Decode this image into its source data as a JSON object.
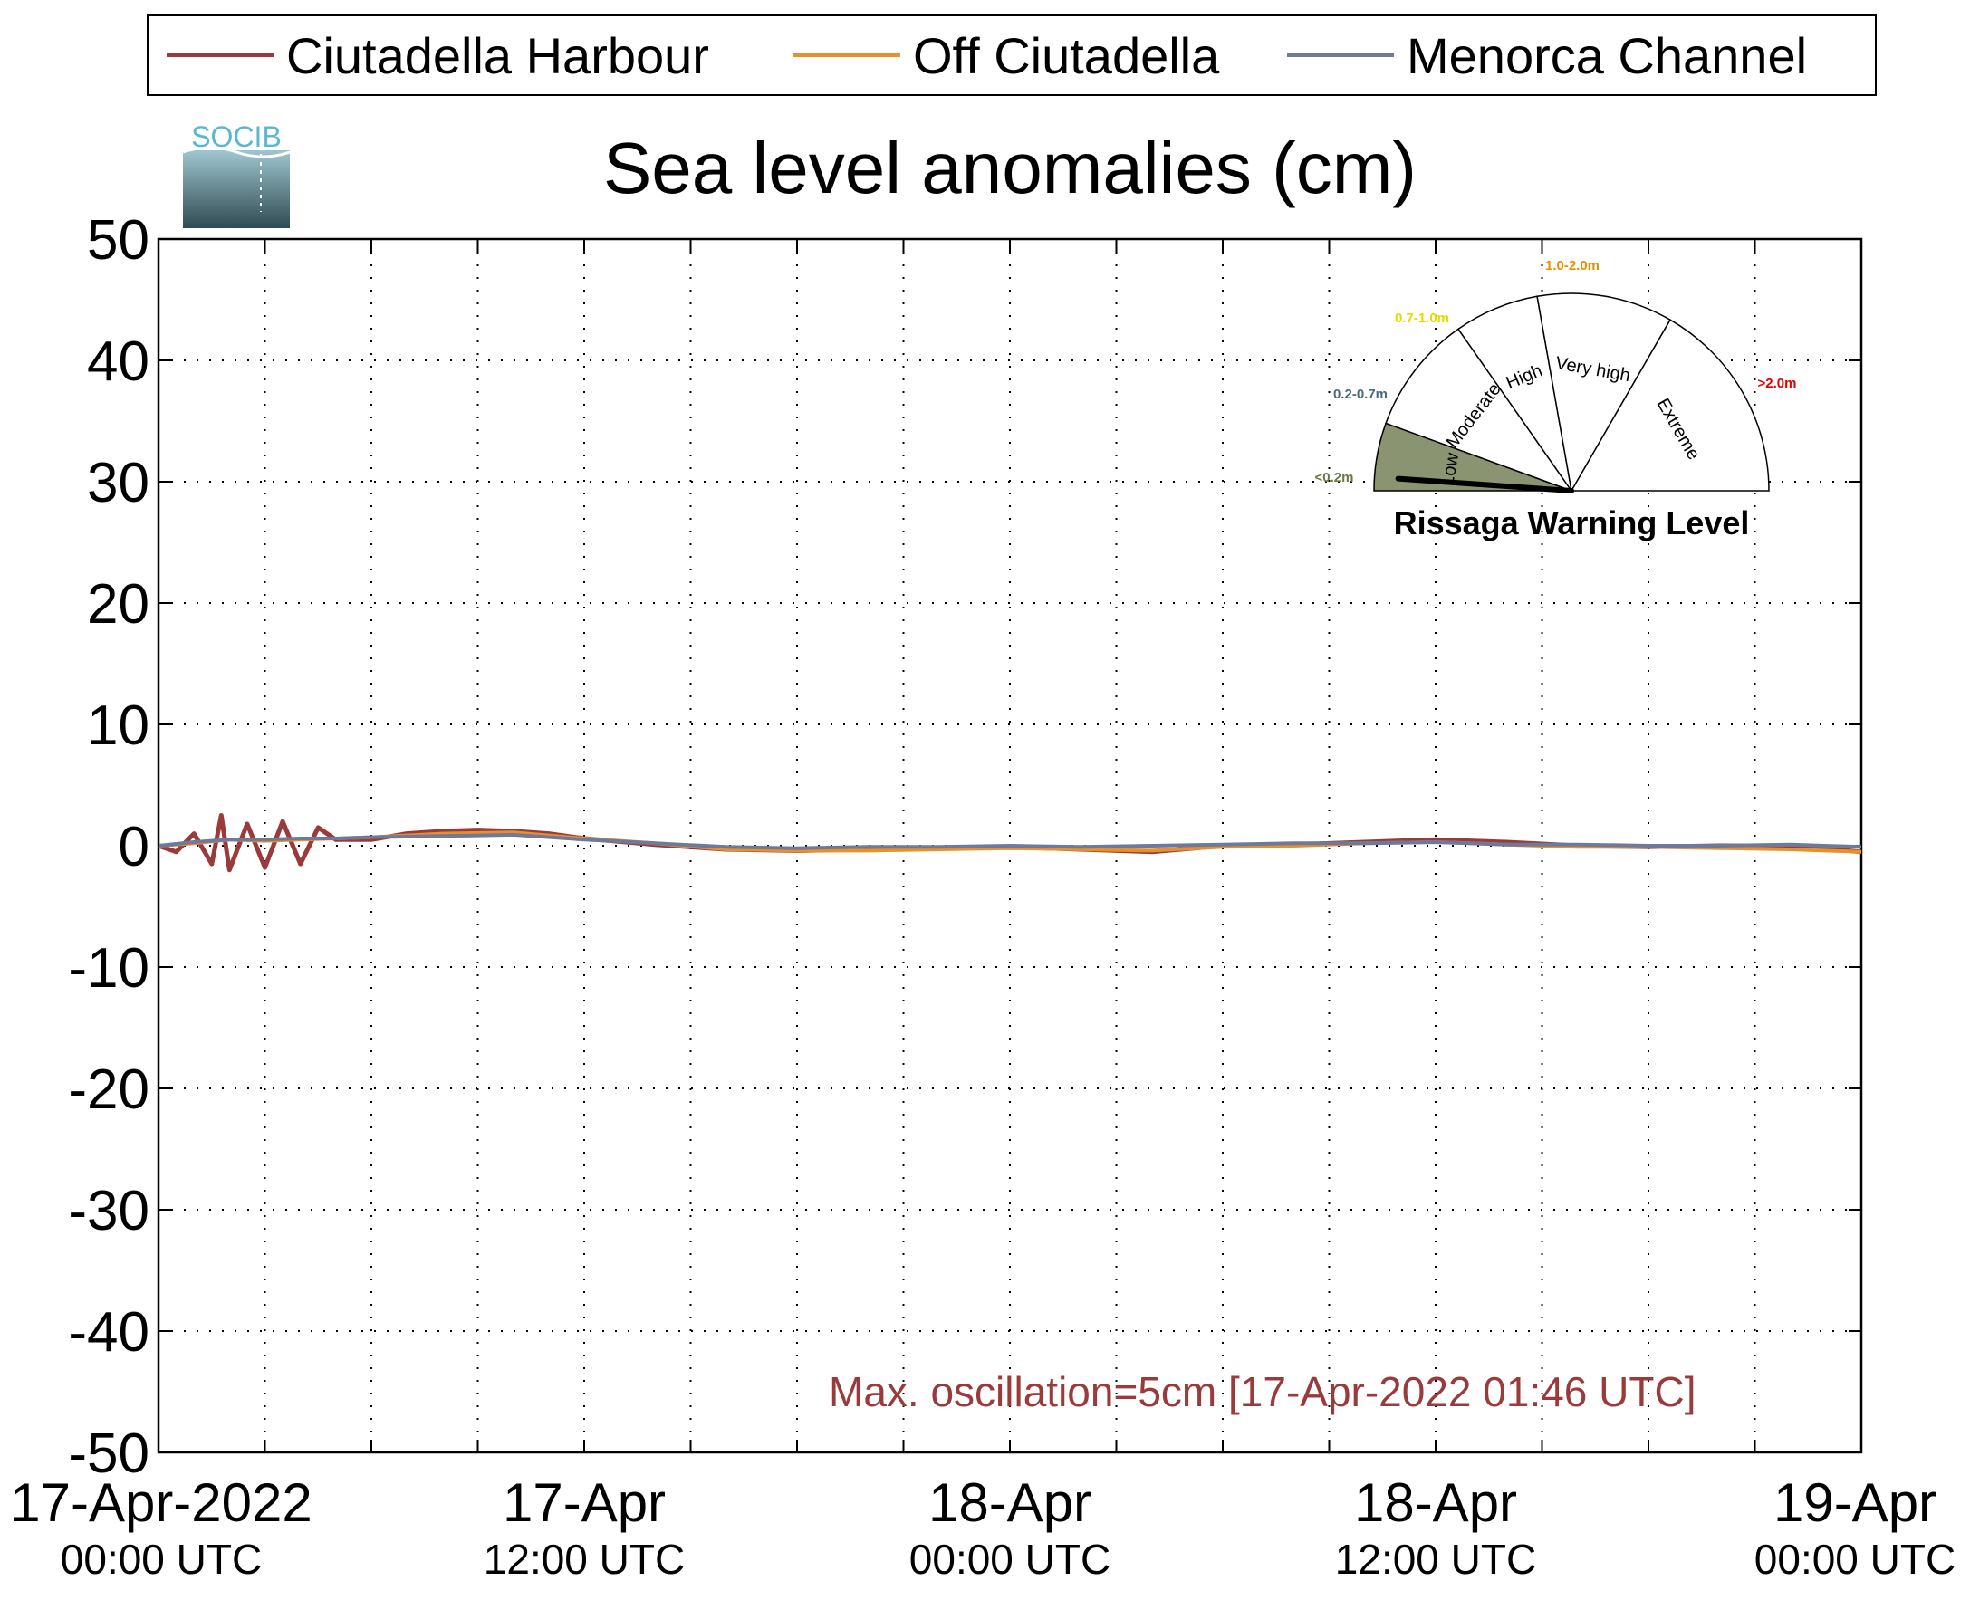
{
  "legend": {
    "items": [
      {
        "label": "Ciutadella Harbour",
        "color": "#9b3a3a"
      },
      {
        "label": "Off Ciutadella",
        "color": "#e8902a"
      },
      {
        "label": "Menorca Channel",
        "color": "#6f7a9a"
      }
    ]
  },
  "logo": {
    "text": "SOCIB"
  },
  "gauge": {
    "title": "Rissaga Warning Level",
    "needle_level": "Low",
    "sectors": [
      {
        "name": "Low",
        "range": "<0.2m",
        "range_color": "#6b7a45",
        "fill": "#8a9470"
      },
      {
        "name": "Moderate",
        "range": "0.2-0.7m",
        "range_color": "#4a6b7a",
        "fill": "#ffffff"
      },
      {
        "name": "High",
        "range": "0.7-1.0m",
        "range_color": "#e6d800",
        "fill": "#ffffff"
      },
      {
        "name": "Very high",
        "range": "1.0-2.0m",
        "range_color": "#f08a00",
        "fill": "#ffffff"
      },
      {
        "name": "Extreme",
        "range": ">2.0m",
        "range_color": "#e00000",
        "fill": "#ffffff"
      }
    ]
  },
  "annotation": {
    "text": "Max. oscillation=5cm [17-Apr-2022 01:46 UTC]",
    "color": "#9b3a3a"
  },
  "chart_data": {
    "type": "line",
    "title": "Sea level anomalies (cm)",
    "xlabel": "",
    "ylabel": "",
    "ylim": [
      -50,
      50
    ],
    "yticks": [
      50,
      40,
      30,
      20,
      10,
      0,
      -10,
      -20,
      -30,
      -40,
      -50
    ],
    "xlim_hours": [
      0,
      48
    ],
    "x_major_ticks": [
      {
        "hour": 0,
        "line1": "17-Apr-2022",
        "line2": "00:00 UTC"
      },
      {
        "hour": 12,
        "line1": "17-Apr",
        "line2": "12:00 UTC"
      },
      {
        "hour": 24,
        "line1": "18-Apr",
        "line2": "00:00 UTC"
      },
      {
        "hour": 36,
        "line1": "18-Apr",
        "line2": "12:00 UTC"
      },
      {
        "hour": 48,
        "line1": "19-Apr",
        "line2": "00:00 UTC"
      }
    ],
    "grid": true,
    "legend_position": "top",
    "series": [
      {
        "name": "Ciutadella Harbour",
        "color": "#9b3a3a",
        "x_hours": [
          0,
          0.5,
          1,
          1.5,
          1.77,
          2,
          2.5,
          3,
          3.5,
          4,
          4.5,
          5,
          6,
          7,
          8,
          9,
          10,
          11,
          12,
          14,
          16,
          18,
          20,
          22,
          24,
          26,
          28,
          30,
          32,
          34,
          36,
          38,
          40,
          42,
          44,
          46,
          48
        ],
        "y": [
          0,
          -0.5,
          1.0,
          -1.5,
          2.5,
          -2.0,
          1.8,
          -1.8,
          2.0,
          -1.5,
          1.5,
          0.5,
          0.5,
          1.0,
          1.2,
          1.3,
          1.2,
          1.0,
          0.6,
          0.1,
          -0.3,
          -0.4,
          -0.3,
          -0.2,
          -0.1,
          -0.3,
          -0.5,
          0.0,
          0.1,
          0.3,
          0.5,
          0.3,
          0.0,
          -0.1,
          0.0,
          0.0,
          -0.5
        ]
      },
      {
        "name": "Off Ciutadella",
        "color": "#e8902a",
        "x_hours": [
          0,
          1,
          2,
          3,
          4,
          5,
          6,
          8,
          10,
          12,
          14,
          16,
          18,
          20,
          22,
          24,
          26,
          28,
          30,
          32,
          34,
          36,
          38,
          40,
          42,
          44,
          46,
          48
        ],
        "y": [
          0,
          0.2,
          0.5,
          0.4,
          0.5,
          0.6,
          0.7,
          1.0,
          1.1,
          0.6,
          0.2,
          -0.3,
          -0.4,
          -0.4,
          -0.3,
          -0.2,
          -0.3,
          -0.4,
          -0.1,
          0.0,
          0.2,
          0.3,
          0.1,
          -0.1,
          -0.1,
          -0.2,
          -0.3,
          -0.5
        ]
      },
      {
        "name": "Menorca Channel",
        "color": "#6f7a9a",
        "x_hours": [
          0,
          1,
          2,
          3,
          4,
          5,
          6,
          8,
          10,
          12,
          14,
          16,
          18,
          20,
          22,
          24,
          26,
          28,
          30,
          32,
          34,
          36,
          38,
          40,
          42,
          44,
          46,
          48
        ],
        "y": [
          0,
          0.3,
          0.5,
          0.5,
          0.6,
          0.6,
          0.7,
          0.8,
          0.9,
          0.5,
          0.2,
          -0.1,
          -0.2,
          -0.1,
          -0.1,
          0.0,
          -0.1,
          0.0,
          0.1,
          0.2,
          0.2,
          0.3,
          0.1,
          0.1,
          0.0,
          0.0,
          0.1,
          -0.1
        ]
      }
    ]
  }
}
